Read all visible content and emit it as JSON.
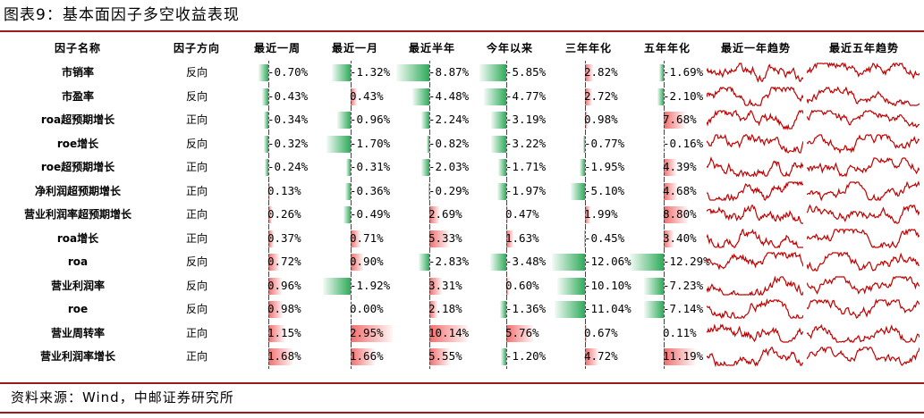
{
  "title": "图表9：基本面因子多空收益表现",
  "source": "资料来源：Wind，中邮证券研究所",
  "headers": [
    "因子名称",
    "因子方向",
    "最近一周",
    "最近一月",
    "最近半年",
    "今年以来",
    "三年年化",
    "五年年化",
    "最近一年趋势",
    "最近五年趋势"
  ],
  "colors": {
    "negative": "#2eab5a",
    "positive": "#f26d6d",
    "spark": "#c00000",
    "rule": "#9e1b1b"
  },
  "rows": [
    {
      "name": "市销率",
      "direction": "反向",
      "values": [
        "-0.70%",
        "-1.32%",
        "-8.87%",
        "-5.85%",
        "2.82%",
        "-1.69%"
      ],
      "nums": [
        -0.7,
        -1.32,
        -8.87,
        -5.85,
        2.82,
        -1.69
      ]
    },
    {
      "name": "市盈率",
      "direction": "反向",
      "values": [
        "-0.43%",
        "0.43%",
        "-4.48%",
        "-4.77%",
        "2.72%",
        "-2.10%"
      ],
      "nums": [
        -0.43,
        0.43,
        -4.48,
        -4.77,
        2.72,
        -2.1
      ]
    },
    {
      "name": "roa超预期增长",
      "direction": "正向",
      "values": [
        "-0.34%",
        "-0.96%",
        "-2.24%",
        "-3.19%",
        "0.98%",
        "7.68%"
      ],
      "nums": [
        -0.34,
        -0.96,
        -2.24,
        -3.19,
        0.98,
        7.68
      ]
    },
    {
      "name": "roe增长",
      "direction": "反向",
      "values": [
        "-0.32%",
        "-1.70%",
        "-0.82%",
        "-3.22%",
        "-0.77%",
        "-0.16%"
      ],
      "nums": [
        -0.32,
        -1.7,
        -0.82,
        -3.22,
        -0.77,
        -0.16
      ]
    },
    {
      "name": "roe超预期增长",
      "direction": "正向",
      "values": [
        "-0.24%",
        "-0.31%",
        "-2.03%",
        "-1.71%",
        "-1.95%",
        "4.39%"
      ],
      "nums": [
        -0.24,
        -0.31,
        -2.03,
        -1.71,
        -1.95,
        4.39
      ]
    },
    {
      "name": "净利润超预期增长",
      "direction": "正向",
      "values": [
        "0.13%",
        "-0.36%",
        "-0.29%",
        "-1.97%",
        "-5.10%",
        "4.68%"
      ],
      "nums": [
        0.13,
        -0.36,
        -0.29,
        -1.97,
        -5.1,
        4.68
      ]
    },
    {
      "name": "营业利润率超预期增长",
      "direction": "正向",
      "values": [
        "0.26%",
        "-0.49%",
        "2.69%",
        "0.47%",
        "1.99%",
        "8.80%"
      ],
      "nums": [
        0.26,
        -0.49,
        2.69,
        0.47,
        1.99,
        8.8
      ]
    },
    {
      "name": "roa增长",
      "direction": "正向",
      "values": [
        "0.37%",
        "0.71%",
        "5.33%",
        "1.63%",
        "-0.45%",
        "3.40%"
      ],
      "nums": [
        0.37,
        0.71,
        5.33,
        1.63,
        -0.45,
        3.4
      ]
    },
    {
      "name": "roa",
      "direction": "反向",
      "values": [
        "0.72%",
        "0.90%",
        "-2.83%",
        "-3.48%",
        "-12.06%",
        "-12.29%"
      ],
      "nums": [
        0.72,
        0.9,
        -2.83,
        -3.48,
        -12.06,
        -12.29
      ]
    },
    {
      "name": "营业利润率",
      "direction": "反向",
      "values": [
        "0.96%",
        "-1.92%",
        "3.31%",
        "0.60%",
        "-10.10%",
        "-7.23%"
      ],
      "nums": [
        0.96,
        -1.92,
        3.31,
        0.6,
        -10.1,
        -7.23
      ]
    },
    {
      "name": "roe",
      "direction": "反向",
      "values": [
        "0.98%",
        "0.00%",
        "2.18%",
        "-1.36%",
        "-11.04%",
        "-7.14%"
      ],
      "nums": [
        0.98,
        0.0,
        2.18,
        -1.36,
        -11.04,
        -7.14
      ]
    },
    {
      "name": "营业周转率",
      "direction": "正向",
      "values": [
        "1.15%",
        "2.95%",
        "10.14%",
        "5.76%",
        "0.67%",
        "0.11%"
      ],
      "nums": [
        1.15,
        2.95,
        10.14,
        5.76,
        0.67,
        0.11
      ]
    },
    {
      "name": "营业利润率增长",
      "direction": "正向",
      "values": [
        "1.68%",
        "1.66%",
        "5.55%",
        "-1.20%",
        "4.72%",
        "11.19%"
      ],
      "nums": [
        1.68,
        1.66,
        5.55,
        -1.2,
        4.72,
        11.19
      ]
    }
  ]
}
